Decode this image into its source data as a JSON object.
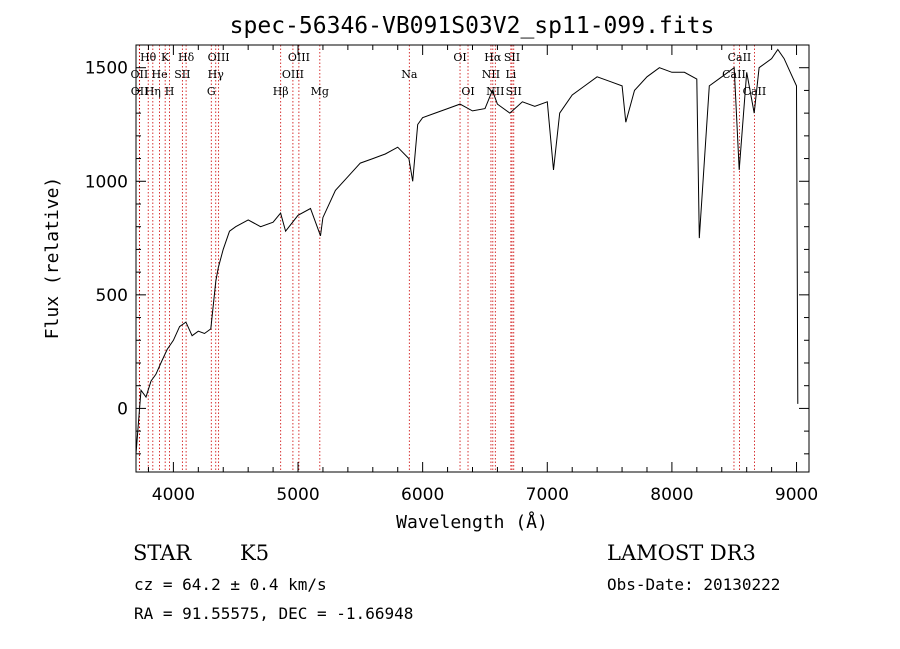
{
  "chart_data": {
    "type": "line",
    "title": "spec-56346-VB091S03V2_sp11-099.fits",
    "xlabel": "Wavelength (Å)",
    "ylabel": "Flux (relative)",
    "xlim": [
      3700,
      9100
    ],
    "ylim": [
      -280,
      1600
    ],
    "xticks": [
      4000,
      5000,
      6000,
      7000,
      8000,
      9000
    ],
    "yticks": [
      0,
      500,
      1000,
      1500
    ],
    "series": [
      {
        "name": "flux",
        "x": [
          3700,
          3740,
          3780,
          3820,
          3860,
          3900,
          3950,
          4000,
          4050,
          4100,
          4150,
          4200,
          4250,
          4300,
          4340,
          4360,
          4400,
          4450,
          4500,
          4600,
          4700,
          4800,
          4860,
          4900,
          5000,
          5100,
          5180,
          5200,
          5300,
          5400,
          5500,
          5600,
          5700,
          5800,
          5890,
          5920,
          5960,
          6000,
          6100,
          6200,
          6300,
          6400,
          6500,
          6560,
          6600,
          6700,
          6800,
          6900,
          7000,
          7050,
          7100,
          7200,
          7300,
          7400,
          7500,
          7600,
          7630,
          7700,
          7800,
          7900,
          8000,
          8100,
          8200,
          8220,
          8300,
          8400,
          8500,
          8540,
          8600,
          8660,
          8700,
          8800,
          8850,
          8900,
          8950,
          9000,
          9010
        ],
        "y": [
          -200,
          80,
          50,
          120,
          150,
          200,
          260,
          300,
          360,
          380,
          320,
          340,
          330,
          350,
          560,
          620,
          700,
          780,
          800,
          830,
          800,
          820,
          860,
          780,
          850,
          880,
          760,
          840,
          960,
          1020,
          1080,
          1100,
          1120,
          1150,
          1100,
          1000,
          1250,
          1280,
          1300,
          1320,
          1340,
          1310,
          1320,
          1400,
          1340,
          1300,
          1350,
          1330,
          1350,
          1050,
          1300,
          1380,
          1420,
          1460,
          1440,
          1420,
          1260,
          1400,
          1460,
          1500,
          1480,
          1480,
          1450,
          750,
          1420,
          1460,
          1500,
          1050,
          1480,
          1300,
          1500,
          1540,
          1580,
          1540,
          1480,
          1420,
          20
        ]
      }
    ],
    "emission_lines": [
      {
        "label": "Hθ",
        "wave": 3798,
        "row": 1
      },
      {
        "label": "K",
        "wave": 3934,
        "row": 1
      },
      {
        "label": "Hδ",
        "wave": 4102,
        "row": 1
      },
      {
        "label": "OIII",
        "wave": 4363,
        "row": 1
      },
      {
        "label": "OIII",
        "wave": 5007,
        "row": 1
      },
      {
        "label": "OI",
        "wave": 6300,
        "row": 1
      },
      {
        "label": "Hα",
        "wave": 6563,
        "row": 1
      },
      {
        "label": "SII",
        "wave": 6717,
        "row": 1
      },
      {
        "label": "CaII",
        "wave": 8542,
        "row": 1
      },
      {
        "label": "OII",
        "wave": 3727,
        "row": 2
      },
      {
        "label": "He",
        "wave": 3889,
        "row": 2
      },
      {
        "label": "SII",
        "wave": 4072,
        "row": 2
      },
      {
        "label": "Hγ",
        "wave": 4340,
        "row": 2
      },
      {
        "label": "OIII",
        "wave": 4959,
        "row": 2
      },
      {
        "label": "Na",
        "wave": 5893,
        "row": 2
      },
      {
        "label": "NII",
        "wave": 6548,
        "row": 2
      },
      {
        "label": "Li",
        "wave": 6708,
        "row": 2
      },
      {
        "label": "CaII",
        "wave": 8498,
        "row": 2
      },
      {
        "label": "OII",
        "wave": 3729,
        "row": 3
      },
      {
        "label": "Hη",
        "wave": 3835,
        "row": 3
      },
      {
        "label": "H",
        "wave": 3969,
        "row": 3
      },
      {
        "label": "G",
        "wave": 4304,
        "row": 3
      },
      {
        "label": "Hβ",
        "wave": 4861,
        "row": 3
      },
      {
        "label": "Mg",
        "wave": 5175,
        "row": 3
      },
      {
        "label": "OI",
        "wave": 6364,
        "row": 3
      },
      {
        "label": "NII",
        "wave": 6583,
        "row": 3
      },
      {
        "label": "SII",
        "wave": 6731,
        "row": 3
      },
      {
        "label": "CaII",
        "wave": 8662,
        "row": 3
      }
    ]
  },
  "info": {
    "object_class": "STAR",
    "subclass": "K5",
    "survey": "LAMOST DR3",
    "redshift_line": "cz = 64.2 ± 0.4 km/s",
    "obs_date_line": "Obs-Date: 20130222",
    "coords_line": "RA =  91.55575, DEC =  -1.66948"
  },
  "colors": {
    "spectrum": "#000000",
    "line_marker": "#cc0000",
    "axes": "#000000",
    "background": "#ffffff"
  }
}
